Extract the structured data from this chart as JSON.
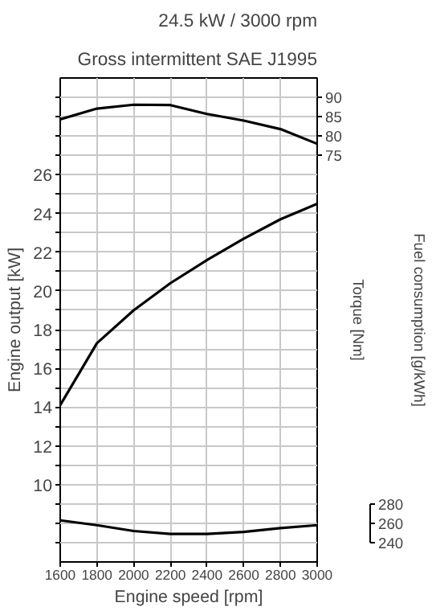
{
  "chart_data": {
    "type": "line",
    "title": "24.5 kW / 3000 rpm",
    "subtitle": "Gross intermittent SAE J1995",
    "xlabel": "Engine speed [rpm]",
    "ylabel": "Engine output [kW]",
    "y2label": "Torque [Nm]",
    "y3label": "Fuel consumption [g/kWh]",
    "x": [
      1600,
      1800,
      2000,
      2200,
      2400,
      2600,
      2800,
      3000
    ],
    "xlim": [
      1600,
      3000
    ],
    "xticks": [
      1600,
      1800,
      2000,
      2200,
      2400,
      2600,
      2800,
      3000
    ],
    "ylim": [
      6,
      31
    ],
    "yticks": [
      {
        "value": 7,
        "label": null
      },
      {
        "value": 8,
        "label": null
      },
      {
        "value": 9,
        "label": null
      },
      10,
      {
        "value": 11,
        "label": null
      },
      12,
      {
        "value": 13,
        "label": null
      },
      14,
      {
        "value": 15,
        "label": null
      },
      16,
      {
        "value": 17,
        "label": null
      },
      18,
      {
        "value": 19,
        "label": null
      },
      20,
      {
        "value": 21,
        "label": null
      },
      22,
      {
        "value": 23,
        "label": null
      },
      24,
      {
        "value": 25,
        "label": null
      },
      26,
      {
        "value": 27,
        "label": null
      },
      {
        "value": 28,
        "label": null
      },
      {
        "value": 29,
        "label": null
      },
      {
        "value": 30,
        "label": null
      }
    ],
    "y2lim": [
      -30,
      95
    ],
    "y2ticks": [
      75,
      80,
      85,
      90
    ],
    "y3lim": [
      220,
      720
    ],
    "y3ticks": [
      240,
      260,
      280
    ],
    "grid": true,
    "line_style": "solid",
    "marker": "none",
    "series": [
      {
        "color": "#000000",
        "axis": "y2",
        "values": [
          84.3,
          87.1,
          88.1,
          88.0,
          85.7,
          84.0,
          81.8,
          78.0
        ]
      },
      {
        "color": "#000000",
        "axis": "y",
        "values": [
          14.1,
          17.3,
          19.0,
          20.4,
          21.6,
          22.7,
          23.7,
          24.5
        ]
      },
      {
        "color": "#000000",
        "axis": "y3",
        "values": [
          263,
          258,
          252,
          249,
          249,
          251,
          255,
          258
        ]
      }
    ]
  }
}
